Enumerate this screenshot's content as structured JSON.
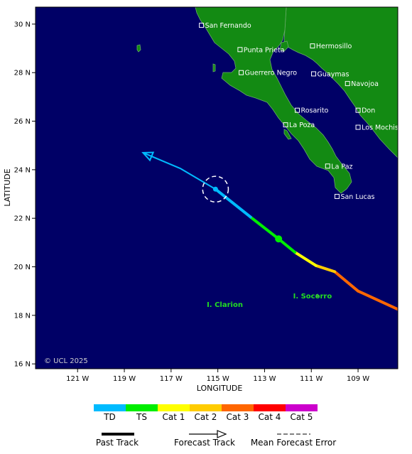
{
  "map": {
    "bounds": {
      "lon_min": -122.8,
      "lon_max": -107.3,
      "lat_min": 15.8,
      "lat_max": 30.7
    },
    "copyright": "© UCL 2025",
    "axes": {
      "x_title": "LONGITUDE",
      "y_title": "LATITUDE",
      "x_ticks": [
        {
          "lon": -121,
          "label": "121 W"
        },
        {
          "lon": -119,
          "label": "119 W"
        },
        {
          "lon": -117,
          "label": "117 W"
        },
        {
          "lon": -115,
          "label": "115 W"
        },
        {
          "lon": -113,
          "label": "113 W"
        },
        {
          "lon": -111,
          "label": "111 W"
        },
        {
          "lon": -109,
          "label": "109 W"
        }
      ],
      "y_ticks": [
        {
          "lat": 30,
          "label": "30 N"
        },
        {
          "lat": 28,
          "label": "28 N"
        },
        {
          "lat": 26,
          "label": "26 N"
        },
        {
          "lat": 24,
          "label": "24 N"
        },
        {
          "lat": 22,
          "label": "22 N"
        },
        {
          "lat": 20,
          "label": "20 N"
        },
        {
          "lat": 18,
          "label": "18 N"
        },
        {
          "lat": 16,
          "label": "16 N"
        }
      ]
    },
    "cities": [
      {
        "name": "San Fernando",
        "lon": -115.7,
        "lat": 29.95
      },
      {
        "name": "Punta Prieta",
        "lon": -114.05,
        "lat": 28.95
      },
      {
        "name": "Hermosillo",
        "lon": -110.95,
        "lat": 29.1
      },
      {
        "name": "Guerrero Negro",
        "lon": -114.0,
        "lat": 28.0
      },
      {
        "name": "Guaymas",
        "lon": -110.9,
        "lat": 27.95
      },
      {
        "name": "Navojoa",
        "lon": -109.45,
        "lat": 27.55
      },
      {
        "name": "Rosarito",
        "lon": -111.6,
        "lat": 26.45
      },
      {
        "name": "Don",
        "lon": -109.0,
        "lat": 26.45
      },
      {
        "name": "La Poza",
        "lon": -112.1,
        "lat": 25.85
      },
      {
        "name": "Los Mochis",
        "lon": -109.0,
        "lat": 25.75
      },
      {
        "name": "La Paz",
        "lon": -110.3,
        "lat": 24.15
      },
      {
        "name": "San Lucas",
        "lon": -109.9,
        "lat": 22.9
      }
    ],
    "islands": [
      {
        "name": "I. Clarion",
        "lon": -114.7,
        "lat": 18.35,
        "label": "I. Clarion"
      },
      {
        "name": "I. Socorro",
        "lon": -110.95,
        "lat": 18.7,
        "label": "I. Socorro"
      }
    ],
    "colors": {
      "ocean": "#000066",
      "land": "#138a13",
      "coast": "#66aa66",
      "TD": "#00bbff",
      "TS": "#00ee00",
      "Cat1": "#ffff00",
      "Cat2": "#ffcc00",
      "Cat3": "#ff6600",
      "Cat4": "#ff0000",
      "Cat5": "#cc00cc"
    },
    "past_track": [
      {
        "lon": -107.3,
        "lat": 18.25,
        "cat": "Cat3"
      },
      {
        "lon": -109.0,
        "lat": 19.0,
        "cat": "Cat3"
      },
      {
        "lon": -110.0,
        "lat": 19.8,
        "cat": "Cat2"
      },
      {
        "lon": -110.8,
        "lat": 20.05,
        "cat": "Cat1"
      },
      {
        "lon": -111.7,
        "lat": 20.6,
        "cat": "TS"
      },
      {
        "lon": -112.4,
        "lat": 21.15,
        "cat": "TS"
      },
      {
        "lon": -113.6,
        "lat": 22.05,
        "cat": "TD"
      },
      {
        "lon": -115.1,
        "lat": 23.2,
        "cat": "TD"
      }
    ],
    "ts_point": {
      "lon": -112.4,
      "lat": 21.15
    },
    "current_point": {
      "lon": -115.1,
      "lat": 23.2
    },
    "forecast_track": [
      {
        "lon": -115.1,
        "lat": 23.2
      },
      {
        "lon": -116.6,
        "lat": 24.05
      },
      {
        "lon": -118.2,
        "lat": 24.7
      }
    ],
    "forecast_error_radius_deg": 0.55
  },
  "legend": {
    "scale": [
      {
        "key": "TD",
        "label": "TD"
      },
      {
        "key": "TS",
        "label": "TS"
      },
      {
        "key": "Cat1",
        "label": "Cat 1"
      },
      {
        "key": "Cat2",
        "label": "Cat 2"
      },
      {
        "key": "Cat3",
        "label": "Cat 3"
      },
      {
        "key": "Cat4",
        "label": "Cat 4"
      },
      {
        "key": "Cat5",
        "label": "Cat 5"
      }
    ],
    "past_track": "Past Track",
    "forecast_track": "Forecast Track",
    "mean_error": "Mean Forecast Error"
  }
}
